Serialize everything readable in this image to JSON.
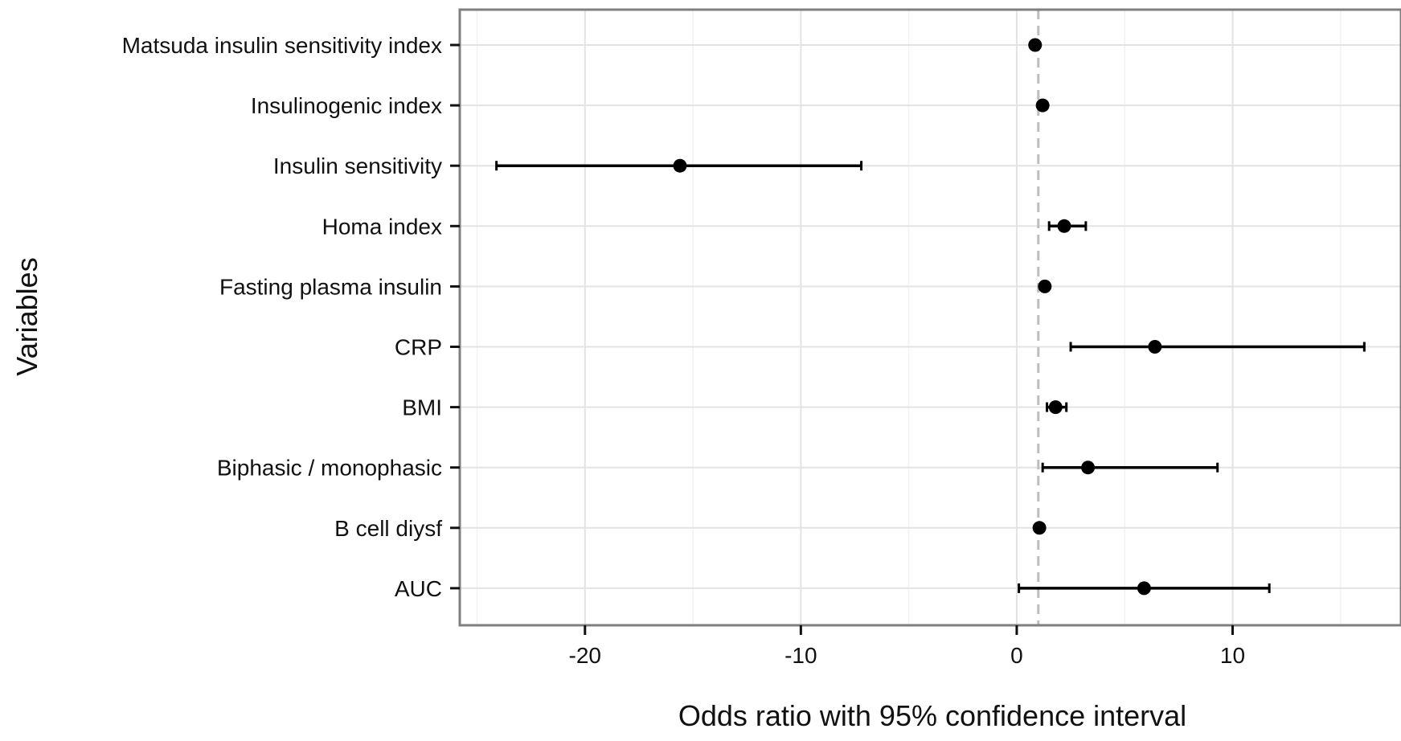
{
  "chart_data": {
    "type": "forest",
    "title": "",
    "xlabel": "Odds ratio with 95% confidence interval",
    "ylabel": "Variables",
    "xlim": [
      -25.8,
      17.8
    ],
    "xticks": [
      -20,
      -10,
      0,
      10
    ],
    "xtick_labels": [
      "-20",
      "-10",
      "0",
      "10"
    ],
    "reference_line": 1,
    "grid": true,
    "categories": [
      "Matsuda insulin sensitivity index",
      "Insulinogenic index",
      "Insulin sensitivity",
      "Homa index",
      "Fasting plasma insulin",
      "CRP",
      "BMI",
      "Biphasic / monophasic",
      "B cell diysf",
      "AUC"
    ],
    "points": [
      {
        "label": "Matsuda insulin sensitivity index",
        "estimate": 0.85,
        "lower": 0.75,
        "upper": 0.95
      },
      {
        "label": "Insulinogenic index",
        "estimate": 1.2,
        "lower": 1.1,
        "upper": 1.3
      },
      {
        "label": "Insulin sensitivity",
        "estimate": -15.6,
        "lower": -24.1,
        "upper": -7.2
      },
      {
        "label": "Homa index",
        "estimate": 2.2,
        "lower": 1.5,
        "upper": 3.2
      },
      {
        "label": "Fasting plasma insulin",
        "estimate": 1.3,
        "lower": 1.2,
        "upper": 1.4
      },
      {
        "label": "CRP",
        "estimate": 6.4,
        "lower": 2.5,
        "upper": 16.1
      },
      {
        "label": "BMI",
        "estimate": 1.8,
        "lower": 1.4,
        "upper": 2.3
      },
      {
        "label": "Biphasic / monophasic",
        "estimate": 3.3,
        "lower": 1.2,
        "upper": 9.3
      },
      {
        "label": "B cell diysf",
        "estimate": 1.05,
        "lower": 0.95,
        "upper": 1.15
      },
      {
        "label": "AUC",
        "estimate": 5.9,
        "lower": 0.1,
        "upper": 11.7
      }
    ]
  }
}
